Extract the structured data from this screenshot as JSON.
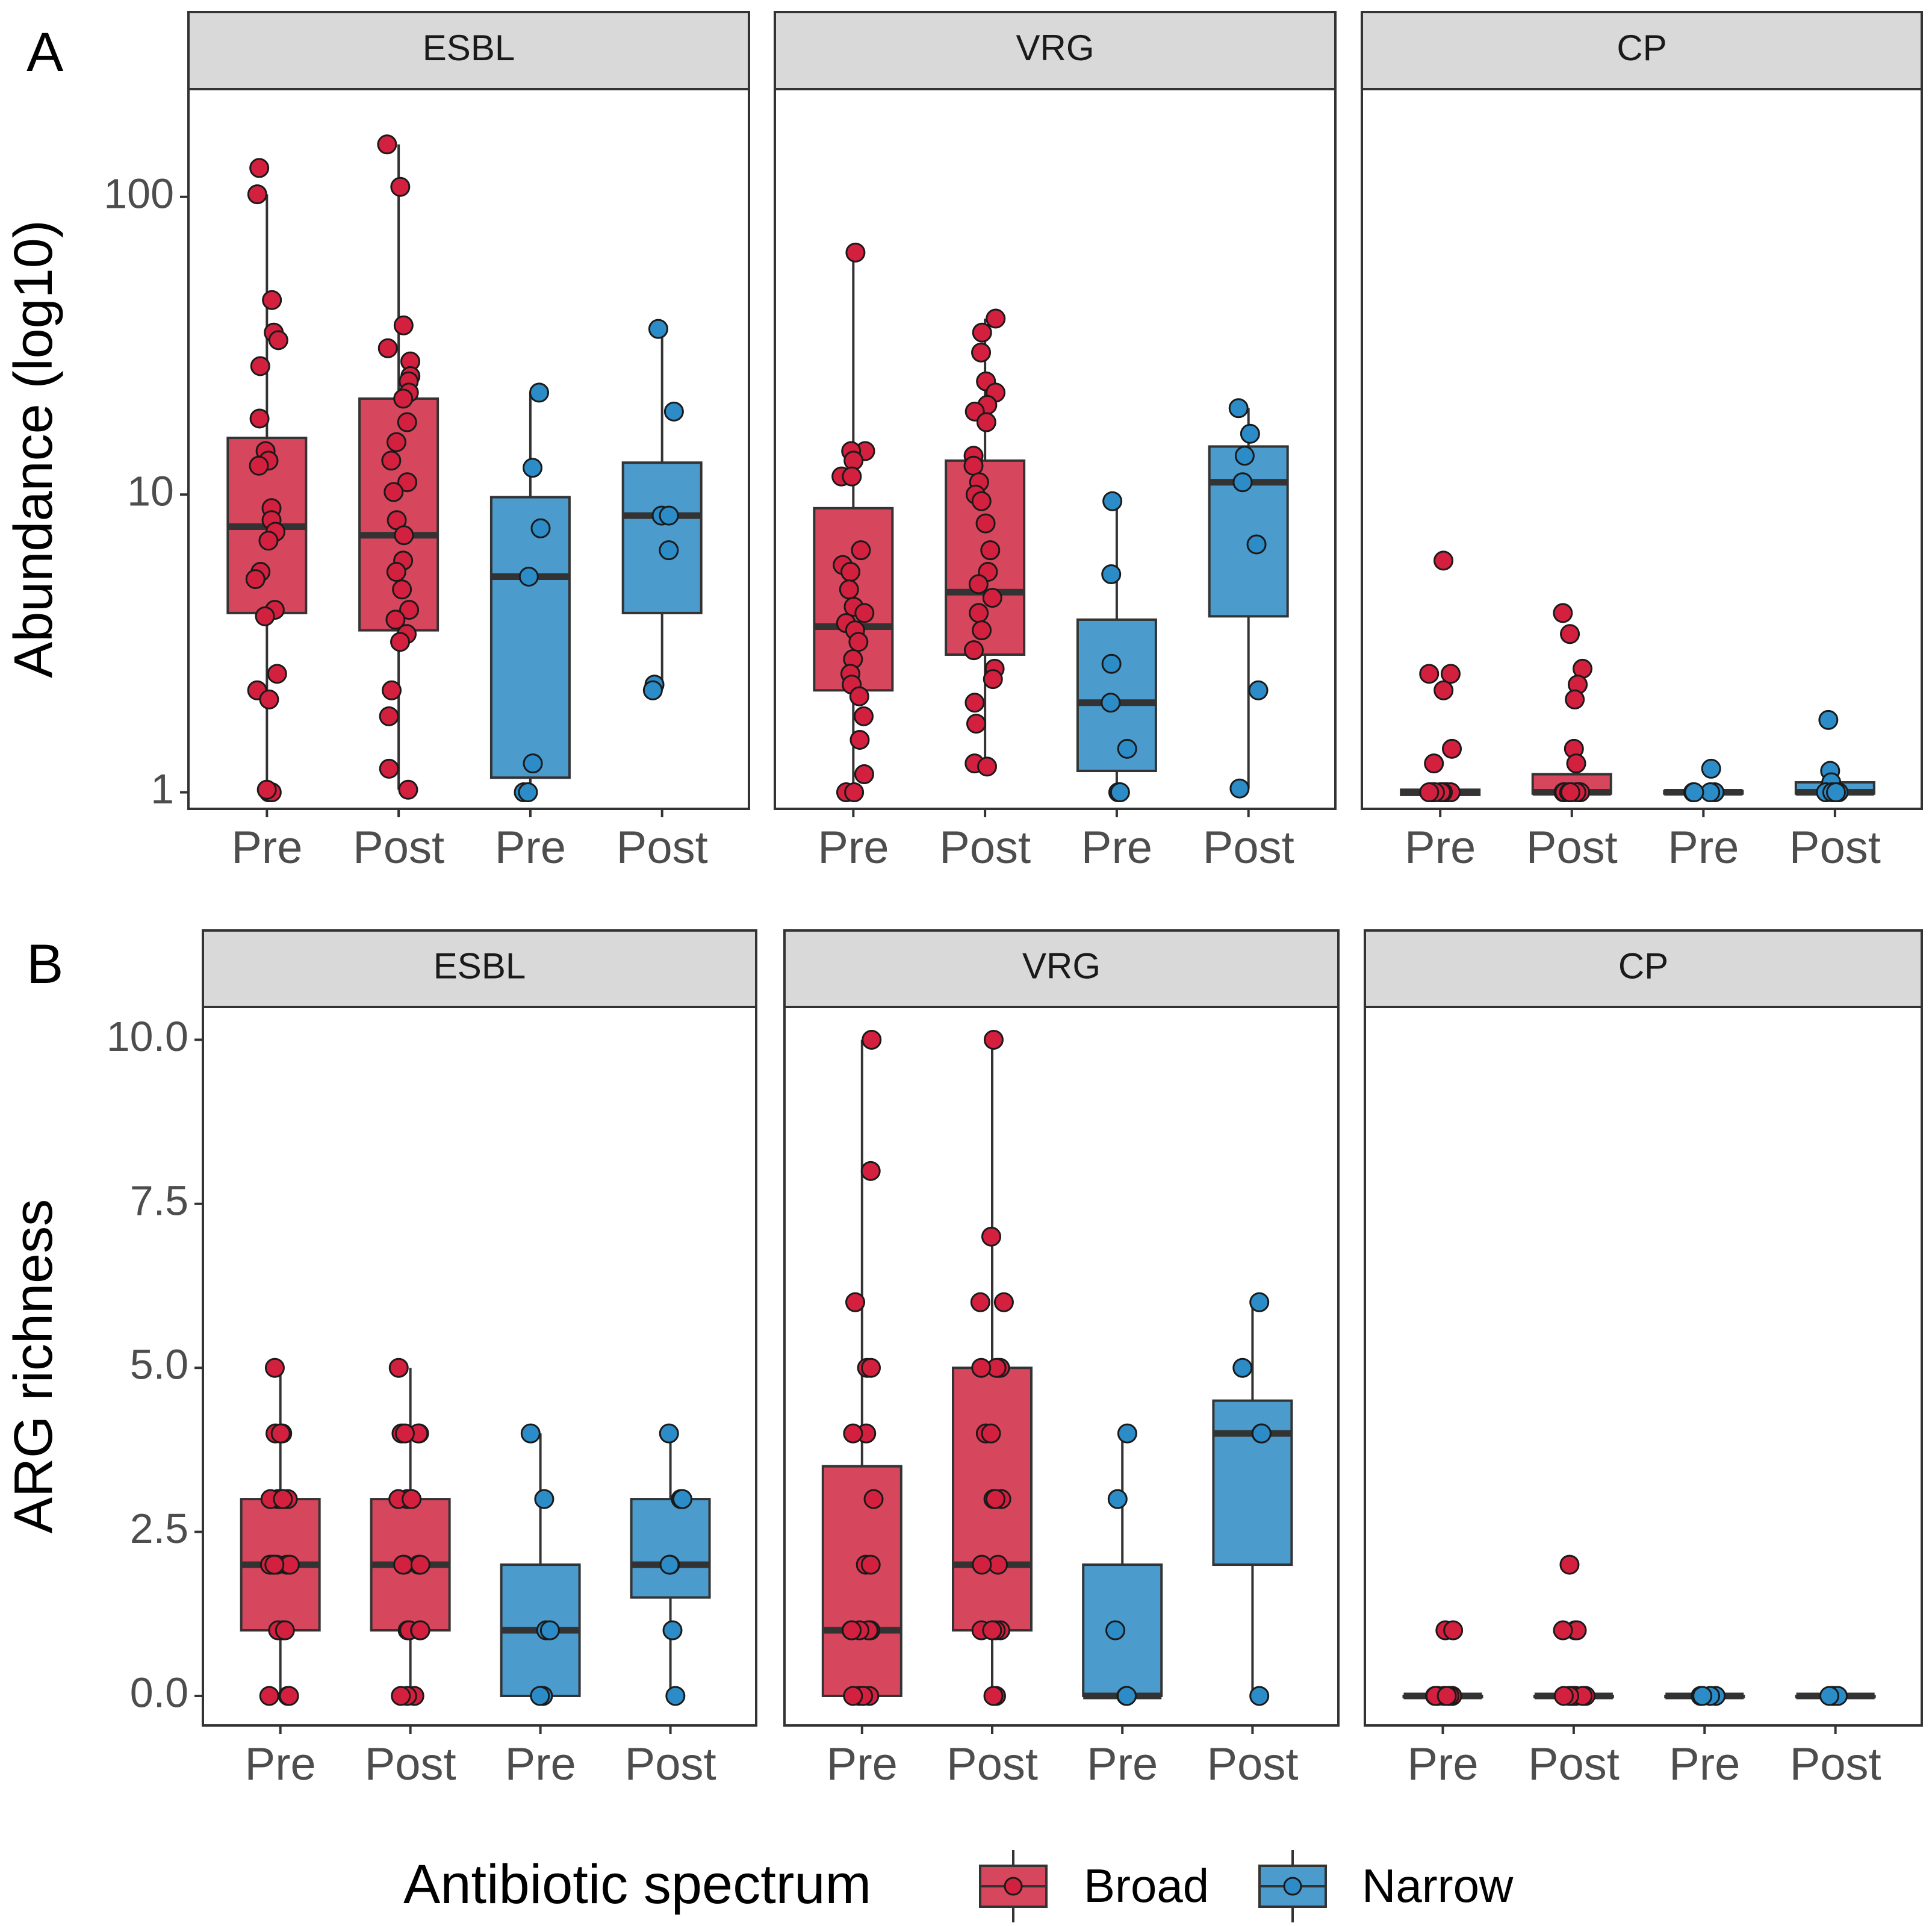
{
  "colors": {
    "broad": "#D6475E",
    "narrow": "#4B9BCD",
    "broad_point": "#D3203F",
    "narrow_point": "#2B8CC8",
    "strip": "#D9D9D9",
    "axis_text": "#4D4D4D",
    "outline": "#333333"
  },
  "legend": {
    "title": "Antibiotic spectrum",
    "items": [
      {
        "label": "Broad",
        "color_key": "broad"
      },
      {
        "label": "Narrow",
        "color_key": "narrow"
      }
    ]
  },
  "chart_data": [
    {
      "type": "boxplot",
      "panel_tag": "A",
      "ylabel": "Abundance (log10)",
      "yscale": "log10",
      "ylim": [
        0.88,
        230
      ],
      "yticks": [
        1,
        10,
        100
      ],
      "ytick_labels": [
        "1",
        "10",
        "100"
      ],
      "categories": [
        "Pre",
        "Post",
        "Pre",
        "Post"
      ],
      "category_groups": [
        "Broad",
        "Broad",
        "Narrow",
        "Narrow"
      ],
      "facets": [
        {
          "title": "ESBL",
          "boxes": [
            {
              "q1": 4.0,
              "median": 7.8,
              "q3": 15.5,
              "wmin": 1.0,
              "wmax": 102,
              "points": [
                125,
                102,
                45,
                35,
                33,
                27,
                18,
                14,
                13,
                12.5,
                9,
                8.2,
                7.5,
                7,
                5.5,
                5.2,
                4.1,
                3.9,
                2.5,
                2.2,
                2.05,
                1.0,
                1.0,
                1.02
              ]
            },
            {
              "q1": 3.5,
              "median": 7.3,
              "q3": 21,
              "wmin": 1.02,
              "wmax": 150,
              "points": [
                150,
                108,
                37,
                31,
                28,
                25,
                24,
                22,
                21,
                17.5,
                15,
                13,
                11,
                10.2,
                8.2,
                7.3,
                6,
                5.5,
                4.8,
                4.1,
                3.8,
                3.4,
                3.2,
                2.2,
                1.8,
                1.2,
                1.02
              ]
            },
            {
              "q1": 1.12,
              "median": 5.3,
              "q3": 9.8,
              "wmin": 1.0,
              "wmax": 22,
              "points": [
                22,
                12.3,
                7.7,
                5.3,
                1.25,
                1.0,
                1.0
              ]
            },
            {
              "q1": 4.0,
              "median": 8.5,
              "q3": 12.8,
              "wmin": 2.3,
              "wmax": 36,
              "points": [
                36,
                19,
                8.5,
                8.5,
                6.5,
                2.3,
                2.2
              ]
            }
          ]
        },
        {
          "title": "VRG",
          "boxes": [
            {
              "q1": 2.2,
              "median": 3.6,
              "q3": 9,
              "wmin": 1.0,
              "wmax": 65,
              "points": [
                65,
                14,
                14,
                13,
                11.5,
                11.5,
                6.5,
                5.8,
                5.5,
                4.8,
                4.2,
                4,
                3.7,
                3.5,
                3.2,
                2.8,
                2.5,
                2.3,
                2.1,
                1.8,
                1.5,
                1.15,
                1.0,
                1.0
              ]
            },
            {
              "q1": 2.9,
              "median": 4.7,
              "q3": 13,
              "wmin": 1.22,
              "wmax": 39,
              "points": [
                39,
                35,
                30,
                24,
                22,
                20,
                19,
                17.5,
                13.5,
                12.5,
                11,
                10,
                9.5,
                8,
                6.5,
                5.5,
                5.0,
                4.5,
                4.0,
                3.5,
                3.0,
                2.6,
                2.4,
                2.0,
                1.7,
                1.25,
                1.22
              ]
            },
            {
              "q1": 1.18,
              "median": 2.0,
              "q3": 3.8,
              "wmin": 1.0,
              "wmax": 9.5,
              "points": [
                9.5,
                5.4,
                2.7,
                2.0,
                1.4,
                1.0,
                1.0
              ]
            },
            {
              "q1": 3.9,
              "median": 11,
              "q3": 14.5,
              "wmin": 1.03,
              "wmax": 19.5,
              "points": [
                19.5,
                16,
                13.5,
                11,
                6.8,
                2.2,
                1.03
              ]
            }
          ]
        },
        {
          "title": "CP",
          "boxes": [
            {
              "q1": 0.98,
              "median": 1.0,
              "q3": 1.02,
              "wmin": 1.0,
              "wmax": 1.0,
              "points": [
                6,
                2.5,
                2.5,
                2.2,
                1.4,
                1.25,
                1,
                1,
                1,
                1,
                1,
                1,
                1,
                1,
                1,
                1,
                1,
                1
              ]
            },
            {
              "q1": 0.99,
              "median": 1.0,
              "q3": 1.15,
              "wmin": 1.0,
              "wmax": 1.15,
              "points": [
                4,
                3.4,
                2.6,
                2.3,
                2.05,
                1.4,
                1.25,
                1,
                1,
                1,
                1,
                1,
                1,
                1,
                1,
                1,
                1
              ]
            },
            {
              "q1": 0.99,
              "median": 1.0,
              "q3": 1.01,
              "wmin": 1.0,
              "wmax": 1.0,
              "points": [
                1.2,
                1,
                1,
                1,
                1
              ]
            },
            {
              "q1": 0.99,
              "median": 1.0,
              "q3": 1.08,
              "wmin": 1.0,
              "wmax": 1.08,
              "points": [
                1.75,
                1.18,
                1.08,
                1,
                1,
                1,
                1
              ]
            }
          ]
        }
      ]
    },
    {
      "type": "boxplot",
      "panel_tag": "B",
      "ylabel": "ARG richness",
      "yscale": "linear",
      "ylim": [
        -0.45,
        10.5
      ],
      "yticks": [
        0,
        2.5,
        5,
        7.5,
        10
      ],
      "ytick_labels": [
        "0.0",
        "2.5",
        "5.0",
        "7.5",
        "10.0"
      ],
      "categories": [
        "Pre",
        "Post",
        "Pre",
        "Post"
      ],
      "category_groups": [
        "Broad",
        "Broad",
        "Narrow",
        "Narrow"
      ],
      "facets": [
        {
          "title": "ESBL",
          "boxes": [
            {
              "q1": 1,
              "median": 2,
              "q3": 3,
              "wmin": 0,
              "wmax": 5,
              "points": [
                5,
                4,
                4,
                4,
                3,
                3,
                3,
                3,
                3,
                2,
                2,
                2,
                2,
                2,
                2,
                2,
                1,
                1,
                1,
                1,
                0,
                0,
                0
              ]
            },
            {
              "q1": 1,
              "median": 2,
              "q3": 3,
              "wmin": 0,
              "wmax": 5,
              "points": [
                5,
                4,
                4,
                4,
                4,
                3,
                3,
                3,
                2,
                2,
                2,
                2,
                2,
                1,
                1,
                1,
                1,
                0,
                0,
                0
              ]
            },
            {
              "q1": 0,
              "median": 1,
              "q3": 2,
              "wmin": 0,
              "wmax": 4,
              "points": [
                4,
                3,
                1,
                1,
                0,
                0
              ]
            },
            {
              "q1": 1.5,
              "median": 2,
              "q3": 3,
              "wmin": 0,
              "wmax": 4,
              "points": [
                4,
                3,
                3,
                2,
                2,
                1,
                0
              ]
            }
          ]
        },
        {
          "title": "VRG",
          "boxes": [
            {
              "q1": 0,
              "median": 1,
              "q3": 3.5,
              "wmin": 0,
              "wmax": 10,
              "points": [
                10,
                8,
                6,
                5,
                5,
                4,
                4,
                3,
                2,
                2,
                1,
                1,
                1,
                1,
                1,
                0,
                0,
                0,
                0,
                0
              ]
            },
            {
              "q1": 1,
              "median": 2,
              "q3": 5,
              "wmin": 0,
              "wmax": 10,
              "points": [
                10,
                7,
                6,
                6,
                5,
                5,
                5,
                5,
                4,
                4,
                3,
                3,
                3,
                2,
                2,
                1,
                1,
                1,
                1,
                0,
                0
              ]
            },
            {
              "q1": 0,
              "median": 0,
              "q3": 2,
              "wmin": 0,
              "wmax": 4,
              "points": [
                4,
                3,
                1,
                0,
                0
              ]
            },
            {
              "q1": 2,
              "median": 4,
              "q3": 4.5,
              "wmin": 0,
              "wmax": 6,
              "points": [
                6,
                5,
                4,
                4,
                0
              ]
            }
          ]
        },
        {
          "title": "CP",
          "boxes": [
            {
              "q1": 0,
              "median": 0,
              "q3": 0,
              "wmin": 0,
              "wmax": 0,
              "points": [
                1,
                1,
                0,
                0,
                0,
                0,
                0,
                0,
                0,
                0,
                0,
                0
              ]
            },
            {
              "q1": 0,
              "median": 0,
              "q3": 0,
              "wmin": 0,
              "wmax": 0,
              "points": [
                2,
                1,
                1,
                1,
                0,
                0,
                0,
                0,
                0,
                0,
                0,
                0
              ]
            },
            {
              "q1": 0,
              "median": 0,
              "q3": 0,
              "wmin": 0,
              "wmax": 0,
              "points": [
                0,
                0,
                0,
                0
              ]
            },
            {
              "q1": 0,
              "median": 0,
              "q3": 0,
              "wmin": 0,
              "wmax": 0,
              "points": [
                0,
                0,
                0,
                0
              ]
            }
          ]
        }
      ]
    }
  ]
}
